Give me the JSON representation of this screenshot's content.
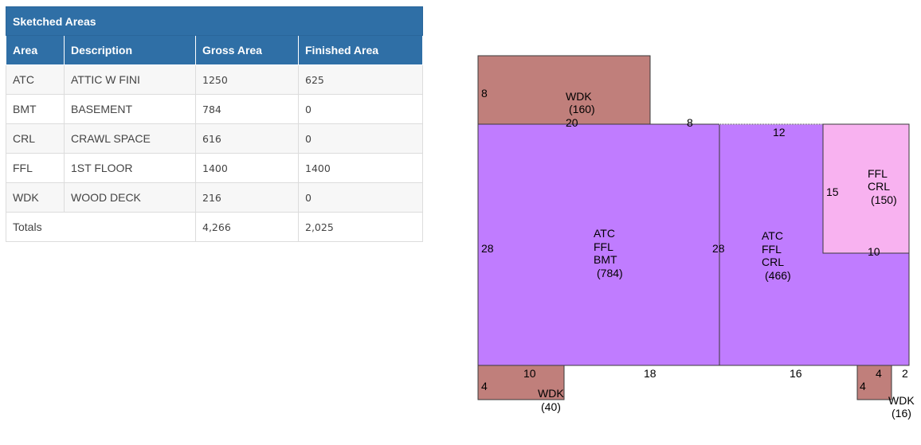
{
  "table": {
    "caption": "Sketched Areas",
    "headers": [
      "Area",
      "Description",
      "Gross Area",
      "Finished Area"
    ],
    "rows": [
      {
        "area": "ATC",
        "description": "ATTIC W FINI",
        "gross": "1250",
        "finished": "625"
      },
      {
        "area": "BMT",
        "description": "BASEMENT",
        "gross": "784",
        "finished": "0"
      },
      {
        "area": "CRL",
        "description": "CRAWL SPACE",
        "gross": "616",
        "finished": "0"
      },
      {
        "area": "FFL",
        "description": "1ST FLOOR",
        "gross": "1400",
        "finished": "1400"
      },
      {
        "area": "WDK",
        "description": "WOOD DECK",
        "gross": "216",
        "finished": "0"
      }
    ],
    "totals": {
      "label": "Totals",
      "gross": "4,266",
      "finished": "2,025"
    }
  },
  "sketch": {
    "colors": {
      "main": "#c07cff",
      "deck": "#c07f7b",
      "crawl": "#f8b2f0",
      "outline": "#3a3a3a"
    },
    "top_deck": {
      "line1": "WDK",
      "line2": "(160)",
      "dim_left": "8",
      "dim_bottom": "20"
    },
    "dim_top_gap": "8",
    "left_block": {
      "line1": "ATC",
      "line2": "FFL",
      "line3": "BMT",
      "line4": "(784)",
      "dim_left": "28",
      "dim_right": "28",
      "dim_bottom": "18"
    },
    "right_block": {
      "line1": "ATC",
      "line2": "FFL",
      "line3": "CRL",
      "line4": "(466)",
      "dim_top": "12",
      "dim_bottom": "16"
    },
    "crawl_block": {
      "line1": "FFL",
      "line2": "CRL",
      "line3": "(150)",
      "dim_left": "15",
      "dim_bottom": "10"
    },
    "bottom_left_deck": {
      "line1": "WDK",
      "line2": "(40)",
      "dim_top": "10",
      "dim_left": "4"
    },
    "bottom_right_deck": {
      "line1": "WDK",
      "line2": "(16)",
      "dim_top": "4",
      "dim_left": "4",
      "dim_right": "2"
    }
  }
}
